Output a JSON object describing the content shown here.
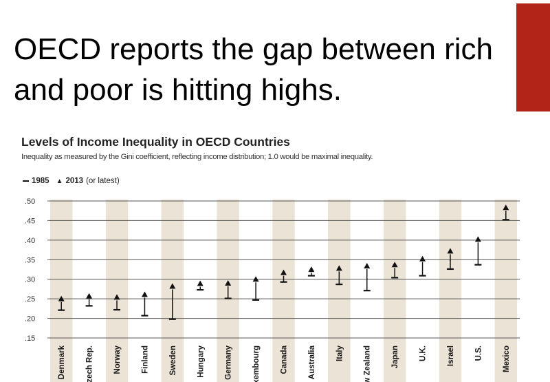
{
  "slide": {
    "title": "OECD reports the gap between rich and poor is hitting highs.",
    "accent_color": "#b22418"
  },
  "chart_data": {
    "type": "dot-range",
    "title": "Levels of Income Inequality in OECD Countries",
    "subtitle": "Inequality as measured by the Gini coefficient, reflecting income distribution; 1.0 would be maximal inequality.",
    "legend": {
      "start_label": "1985",
      "end_label": "2013",
      "end_note": "(or latest)",
      "placement": "top-left"
    },
    "ylim": [
      0.15,
      0.5
    ],
    "yticks": [
      ".50",
      ".45",
      ".40",
      ".35",
      ".30",
      ".25",
      ".20",
      ".15"
    ],
    "ytick_values": [
      0.5,
      0.45,
      0.4,
      0.35,
      0.3,
      0.25,
      0.2,
      0.15
    ],
    "grid": true,
    "band_color": "#ebe3d5",
    "mark_color": "#111111",
    "categories": [
      "Denmark",
      "Czech Rep.",
      "Norway",
      "Finland",
      "Sweden",
      "Hungary",
      "Germany",
      "Luxembourg",
      "Canada",
      "Australia",
      "Italy",
      "New Zealand",
      "Japan",
      "U.K.",
      "Israel",
      "U.S.",
      "Mexico"
    ],
    "series": [
      {
        "name": "1985",
        "values": [
          0.221,
          0.232,
          0.222,
          0.207,
          0.198,
          0.273,
          0.251,
          0.247,
          0.293,
          0.309,
          0.287,
          0.271,
          0.304,
          0.309,
          0.326,
          0.337,
          0.452
        ]
      },
      {
        "name": "2013",
        "values": [
          0.249,
          0.256,
          0.253,
          0.26,
          0.281,
          0.288,
          0.289,
          0.299,
          0.316,
          0.324,
          0.327,
          0.333,
          0.336,
          0.351,
          0.371,
          0.401,
          0.482
        ]
      }
    ]
  }
}
